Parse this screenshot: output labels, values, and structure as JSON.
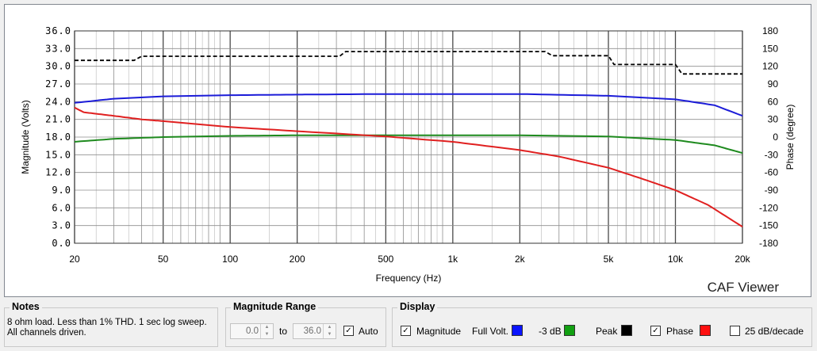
{
  "chart_data": {
    "type": "line",
    "xlabel": "Frequency (Hz)",
    "ylabel": "Magnitude (Volts)",
    "y2label": "Phase (degree)",
    "xscale": "log",
    "xlim": [
      20,
      20000
    ],
    "ylim": [
      0,
      36
    ],
    "y2lim": [
      -180,
      180
    ],
    "grid": true,
    "x_ticks": [
      {
        "value": 20,
        "label": "20"
      },
      {
        "value": 50,
        "label": "50"
      },
      {
        "value": 100,
        "label": "100"
      },
      {
        "value": 200,
        "label": "200"
      },
      {
        "value": 500,
        "label": "500"
      },
      {
        "value": 1000,
        "label": "1k"
      },
      {
        "value": 2000,
        "label": "2k"
      },
      {
        "value": 5000,
        "label": "5k"
      },
      {
        "value": 10000,
        "label": "10k"
      },
      {
        "value": 20000,
        "label": "20k"
      }
    ],
    "y_ticks": [
      "0.0",
      "3.0",
      "6.0",
      "9.0",
      "12.0",
      "15.0",
      "18.0",
      "21.0",
      "24.0",
      "27.0",
      "30.0",
      "33.0",
      "36.0"
    ],
    "y2_ticks": [
      "-180",
      "-150",
      "-120",
      "-90",
      "-60",
      "-30",
      "0",
      "30",
      "60",
      "90",
      "120",
      "150",
      "180"
    ],
    "watermark": "CAF Viewer",
    "series": [
      {
        "name": "Full Volt.",
        "color": "#1c1cd8",
        "axis": "left",
        "style": "solid",
        "x": [
          20,
          30,
          50,
          100,
          200,
          500,
          1000,
          2000,
          5000,
          10000,
          15000,
          20000
        ],
        "y": [
          23.8,
          24.5,
          24.9,
          25.1,
          25.2,
          25.3,
          25.3,
          25.3,
          25.0,
          24.4,
          23.4,
          21.6
        ]
      },
      {
        "name": "-3 dB",
        "color": "#1e8a1e",
        "axis": "left",
        "style": "solid",
        "x": [
          20,
          30,
          50,
          100,
          200,
          500,
          1000,
          2000,
          5000,
          10000,
          15000,
          20000
        ],
        "y": [
          17.2,
          17.7,
          18.0,
          18.2,
          18.3,
          18.3,
          18.3,
          18.3,
          18.1,
          17.5,
          16.6,
          15.3
        ]
      },
      {
        "name": "Phase",
        "color": "#e02020",
        "axis": "right",
        "style": "solid",
        "x": [
          20,
          22,
          30,
          40,
          50,
          100,
          200,
          500,
          1000,
          2000,
          3000,
          5000,
          7000,
          10000,
          14000,
          20000
        ],
        "y": [
          50,
          42,
          36,
          30,
          27,
          17,
          10,
          1,
          -8,
          -22,
          -33,
          -52,
          -70,
          -90,
          -115,
          -152
        ]
      },
      {
        "name": "Peak",
        "color": "#000000",
        "axis": "left",
        "style": "dashed",
        "x": [
          20,
          37,
          40,
          310,
          330,
          2600,
          2800,
          5000,
          5300,
          10000,
          10700,
          20000
        ],
        "y": [
          31.0,
          31.0,
          31.7,
          31.7,
          32.5,
          32.5,
          31.8,
          31.8,
          30.3,
          30.3,
          28.7,
          28.7
        ]
      }
    ]
  },
  "notes": {
    "title": "Notes",
    "text": "8 ohm load. Less than 1% THD. 1 sec log sweep. All channels driven."
  },
  "magnitude_range": {
    "title": "Magnitude Range",
    "min_value": "0.0",
    "to_label": "to",
    "max_value": "36.0",
    "auto_label": "Auto",
    "auto_checked": true
  },
  "display": {
    "title": "Display",
    "magnitude_label": "Magnitude",
    "magnitude_checked": true,
    "full_volt_label": "Full Volt.",
    "full_volt_color": "#0a14ff",
    "minus3db_label": "-3 dB",
    "minus3db_color": "#12a012",
    "peak_label": "Peak",
    "peak_color": "#000000",
    "phase_label": "Phase",
    "phase_checked": true,
    "phase_color": "#ff1010",
    "log25_label": "25 dB/decade",
    "log25_checked": false
  }
}
